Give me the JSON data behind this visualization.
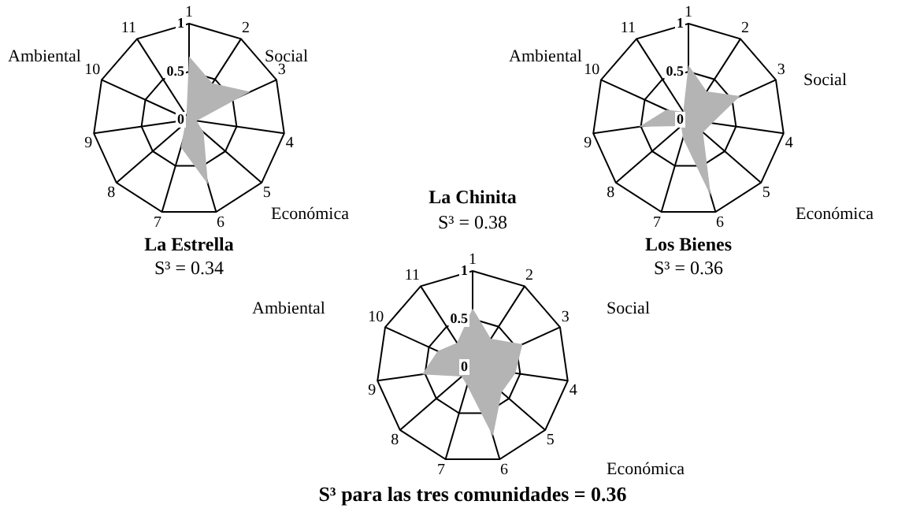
{
  "chart_data": [
    {
      "type": "radar",
      "title": "La Estrella",
      "subtitle": "S³ = 0.34",
      "categories": [
        "1",
        "2",
        "3",
        "4",
        "5",
        "6",
        "7",
        "8",
        "9",
        "10",
        "11"
      ],
      "series": [
        {
          "color": "#b4b4b4",
          "values": [
            0.66,
            0.45,
            0.7,
            0.08,
            0.2,
            0.7,
            0.3,
            0.05,
            0.05,
            0.05,
            0.05
          ]
        }
      ],
      "ylim": [
        0,
        1
      ],
      "yticks": [
        0,
        0.5,
        1
      ],
      "grid": true,
      "marker": "none",
      "legend": false,
      "annotations": [
        "Ambiental",
        "Social",
        "Económica"
      ]
    },
    {
      "type": "radar",
      "title": "Los Bienes",
      "subtitle": "S³ = 0.36",
      "categories": [
        "1",
        "2",
        "3",
        "4",
        "5",
        "6",
        "7",
        "8",
        "9",
        "10",
        "11"
      ],
      "series": [
        {
          "color": "#b4b4b4",
          "values": [
            0.57,
            0.35,
            0.59,
            0.25,
            0.2,
            0.83,
            0.2,
            0.1,
            0.52,
            0.25,
            0.1
          ]
        }
      ],
      "ylim": [
        0,
        1
      ],
      "yticks": [
        0,
        0.5,
        1
      ],
      "grid": true,
      "marker": "none",
      "legend": false,
      "annotations": [
        "Ambiental",
        "Social",
        "Económica"
      ]
    },
    {
      "type": "radar",
      "title": "La Chinita",
      "subtitle": "S³ = 0.38",
      "categories": [
        "1",
        "2",
        "3",
        "4",
        "5",
        "6",
        "7",
        "8",
        "9",
        "10",
        "11"
      ],
      "series": [
        {
          "color": "#b4b4b4",
          "values": [
            0.61,
            0.35,
            0.57,
            0.45,
            0.4,
            0.75,
            0.2,
            0.15,
            0.53,
            0.4,
            0.3
          ]
        }
      ],
      "ylim": [
        0,
        1
      ],
      "yticks": [
        0,
        0.5,
        1
      ],
      "grid": true,
      "marker": "none",
      "legend": false,
      "annotations": [
        "Ambiental",
        "Social",
        "Económica",
        "S³ para las tres comunidades = 0.36"
      ]
    }
  ]
}
